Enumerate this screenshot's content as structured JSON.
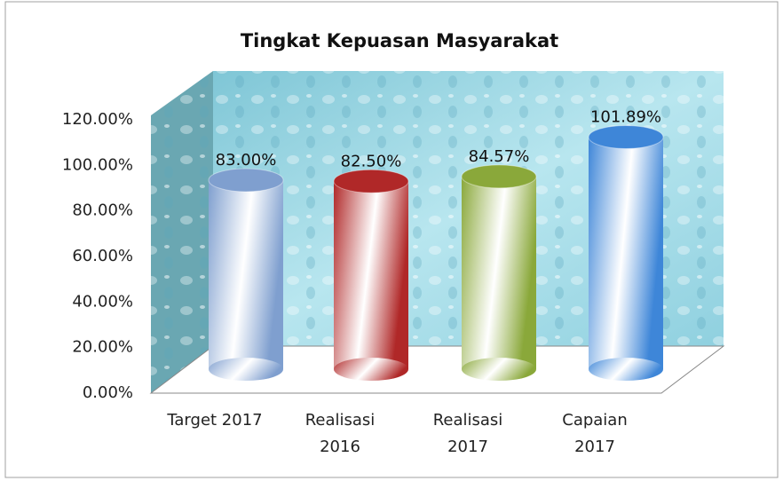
{
  "chart_data": {
    "type": "cylinder-bar",
    "title": "Tingkat Kepuasan Masyarakat",
    "categories": [
      "Target 2017",
      "Realisasi 2016",
      "Realisasi 2017",
      "Capaian 2017"
    ],
    "values": [
      83,
      82.5,
      84.57,
      101.89
    ],
    "value_labels": [
      "83.00%",
      "82.50%",
      "84.57%",
      "101.89%"
    ],
    "colors": [
      "#7f9fcf",
      "#b02828",
      "#8aa83a",
      "#3e86d8"
    ],
    "ylim": [
      0,
      120
    ],
    "yticks": [
      {
        "value": 0,
        "label": "0.00%"
      },
      {
        "value": 20,
        "label": "20.00%"
      },
      {
        "value": 40,
        "label": "40.00%"
      },
      {
        "value": 60,
        "label": "60.00%"
      },
      {
        "value": 80,
        "label": "80.00%"
      },
      {
        "value": 100,
        "label": "100.00%"
      },
      {
        "value": 120,
        "label": "120.00%"
      }
    ]
  }
}
